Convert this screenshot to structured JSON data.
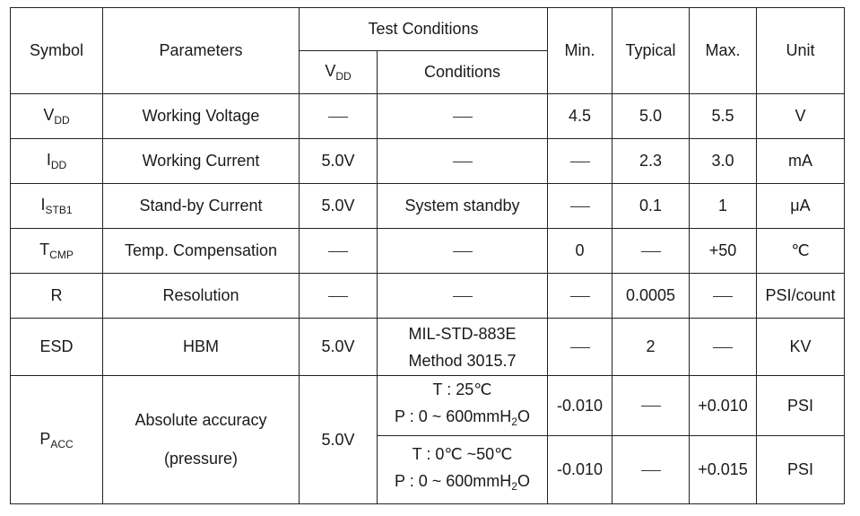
{
  "headers": {
    "symbol": "Symbol",
    "parameters": "Parameters",
    "test_conditions": "Test Conditions",
    "vdd_main": "V",
    "vdd_sub": "DD",
    "conditions": "Conditions",
    "min": "Min.",
    "typical": "Typical",
    "max": "Max.",
    "unit": "Unit"
  },
  "rows": [
    {
      "sym_main": "V",
      "sym_sub": "DD",
      "param": "Working Voltage",
      "vdd": "",
      "cond": "",
      "min": "4.5",
      "typ": "5.0",
      "max": "5.5",
      "unit": "V"
    },
    {
      "sym_main": "I",
      "sym_sub": "DD",
      "param": "Working Current",
      "vdd": "5.0V",
      "cond": "",
      "min": "",
      "typ": "2.3",
      "max": "3.0",
      "unit": "mA"
    },
    {
      "sym_main": "I",
      "sym_sub": "STB1",
      "param": "Stand-by Current",
      "vdd": "5.0V",
      "cond": "System standby",
      "min": "",
      "typ": "0.1",
      "max": "1",
      "unit": "μA"
    },
    {
      "sym_main": "T",
      "sym_sub": "CMP",
      "param": "Temp. Compensation",
      "vdd": "",
      "cond": "",
      "min": "0",
      "typ": "",
      "max": "+50",
      "unit": "℃"
    },
    {
      "sym_main": "R",
      "sym_sub": "",
      "param": "Resolution",
      "vdd": "",
      "cond": "",
      "min": "",
      "typ": "0.0005",
      "max": "",
      "unit": "PSI/count"
    },
    {
      "sym_main": "ESD",
      "sym_sub": "",
      "param": "HBM",
      "vdd": "5.0V",
      "cond_line1": "MIL-STD-883E",
      "cond_line2": "Method 3015.7",
      "min": "",
      "typ": "2",
      "max": "",
      "unit": "KV"
    }
  ],
  "pacc": {
    "sym_main": "P",
    "sym_sub": "ACC",
    "param_line1": "Absolute accuracy",
    "param_line2": "(pressure)",
    "vdd": "5.0V",
    "sub": [
      {
        "cond_line1": "T : 25℃",
        "cond_line2_pre": "P : 0 ~ 600mmH",
        "cond_line2_sub": "2",
        "cond_line2_post": "O",
        "min": "-0.010",
        "typ": "",
        "max": "+0.010",
        "unit": "PSI"
      },
      {
        "cond_line1": "T : 0℃ ~50℃",
        "cond_line2_pre": "P : 0 ~ 600mmH",
        "cond_line2_sub": "2",
        "cond_line2_post": "O",
        "min": "-0.010",
        "typ": "",
        "max": "+0.015",
        "unit": "PSI"
      }
    ]
  }
}
